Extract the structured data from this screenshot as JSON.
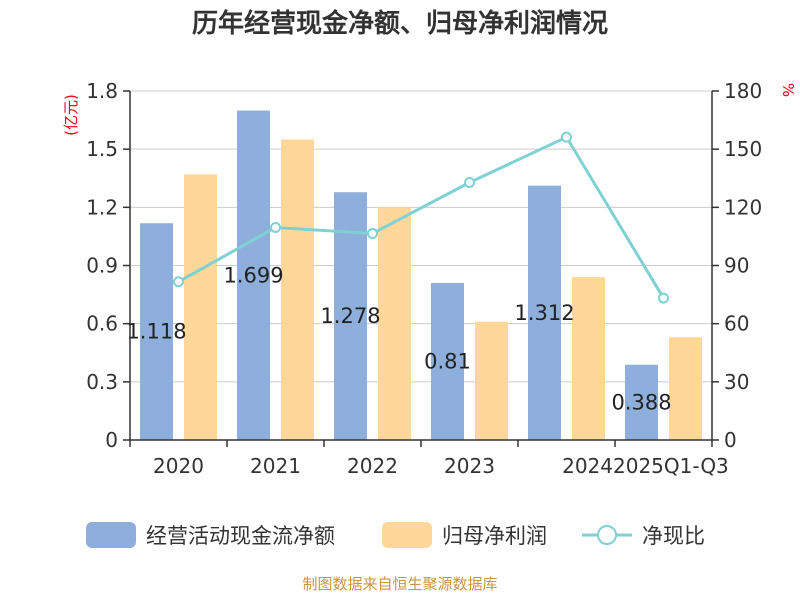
{
  "chart_data": {
    "type": "bar",
    "title": "历年经营现金净额、归母净利润情况",
    "categories": [
      "2020",
      "2021",
      "2022",
      "2023",
      "2024",
      "2025Q1-Q3"
    ],
    "series": [
      {
        "name": "经营活动现金流净额",
        "type": "bar",
        "axis": "left",
        "color": "#8eaedb",
        "values": [
          1.118,
          1.699,
          1.278,
          0.81,
          1.312,
          0.388
        ],
        "labels": [
          "1.118",
          "1.699",
          "1.278",
          "0.81",
          "1.312",
          "0.388"
        ]
      },
      {
        "name": "归母净利润",
        "type": "bar",
        "axis": "left",
        "color": "#fed799",
        "values": [
          1.37,
          1.55,
          1.2,
          0.61,
          0.84,
          0.53
        ]
      },
      {
        "name": "净现比",
        "type": "line",
        "axis": "right",
        "color": "#7fd1d4",
        "values": [
          81.6,
          109.6,
          106.5,
          132.8,
          156.2,
          73.2
        ]
      }
    ],
    "y_left": {
      "label": "(亿元)",
      "min": 0,
      "max": 1.8,
      "ticks": [
        0,
        0.3,
        0.6,
        0.9,
        1.2,
        1.5,
        1.8
      ],
      "tick_labels": [
        "0",
        "0.3",
        "0.6",
        "0.9",
        "1.2",
        "1.5",
        "1.8"
      ]
    },
    "y_right": {
      "label": "%",
      "min": 0,
      "max": 180,
      "ticks": [
        0,
        30,
        60,
        90,
        120,
        150,
        180
      ],
      "tick_labels": [
        "0",
        "30",
        "60",
        "90",
        "120",
        "150",
        "180"
      ]
    },
    "grid": true,
    "legend_position": "bottom"
  },
  "footer": {
    "source": "制图数据来自恒生聚源数据库"
  },
  "colors": {
    "axis_title": "#e60012",
    "text": "#333333",
    "source": "#c8963c",
    "grid": "#cccccc"
  }
}
